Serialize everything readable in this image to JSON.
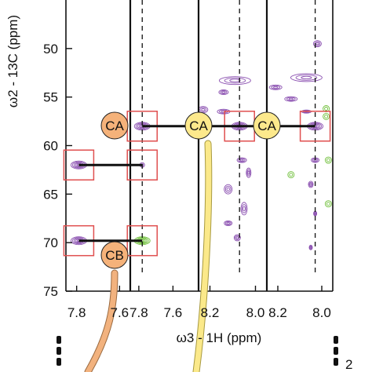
{
  "chart_data": {
    "type": "scatter",
    "xlabel": "ω3 - 1H (ppm)",
    "ylabel": "ω2 - 13C (ppm)",
    "ylim": [
      75,
      45
    ],
    "yticks": [
      50,
      55,
      60,
      65,
      70,
      75
    ],
    "y_unit_top": "(ppm",
    "panels": [
      {
        "xlim": [
          7.85,
          7.55
        ],
        "xticks": [
          7.8,
          7.6
        ]
      },
      {
        "xlim": [
          7.85,
          7.45
        ],
        "xticks": [
          7.8,
          7.6
        ]
      },
      {
        "xlim": [
          8.25,
          7.95
        ],
        "xticks": [
          8.2,
          8.0
        ]
      },
      {
        "xlim": [
          8.25,
          7.95
        ],
        "xticks": [
          8.2,
          8.0
        ]
      }
    ],
    "boxed_peaks": [
      {
        "panel": 0,
        "x": 7.79,
        "y": 62.0
      },
      {
        "panel": 0,
        "x": 7.79,
        "y": 69.8
      },
      {
        "panel": 1,
        "x": 7.78,
        "y": 58.0
      },
      {
        "panel": 1,
        "x": 7.78,
        "y": 62.0
      },
      {
        "panel": 1,
        "x": 7.78,
        "y": 69.8
      },
      {
        "panel": 2,
        "x": 8.07,
        "y": 58.0
      },
      {
        "panel": 3,
        "x": 8.03,
        "y": 58.0
      }
    ],
    "dashed_guides": [
      {
        "panel": 1,
        "x": 7.78
      },
      {
        "panel": 2,
        "x": 8.07
      },
      {
        "panel": 3,
        "x": 8.03
      }
    ],
    "connections": [
      {
        "from": [
          0,
          7.79,
          62.0
        ],
        "to": [
          1,
          7.78,
          62.0
        ]
      },
      {
        "from": [
          0,
          7.79,
          69.8
        ],
        "to": [
          1,
          7.78,
          69.8
        ]
      },
      {
        "from": [
          1,
          7.78,
          58.0
        ],
        "to": [
          3,
          8.03,
          58.0
        ]
      }
    ],
    "labels": [
      {
        "text": "CA",
        "color": "#f5b27a"
      },
      {
        "text": "CB",
        "color": "#f5b27a"
      },
      {
        "text": "CA",
        "color": "#fde98c"
      },
      {
        "text": "CA",
        "color": "#fde98c"
      }
    ],
    "colors": {
      "contour": "#8a4fb0",
      "contour_green": "#6fbf3a",
      "box": "#e05050",
      "orange_tube": "#f2b27e",
      "yellow_tube": "#fbe98a"
    },
    "right_edge_text": "2"
  }
}
